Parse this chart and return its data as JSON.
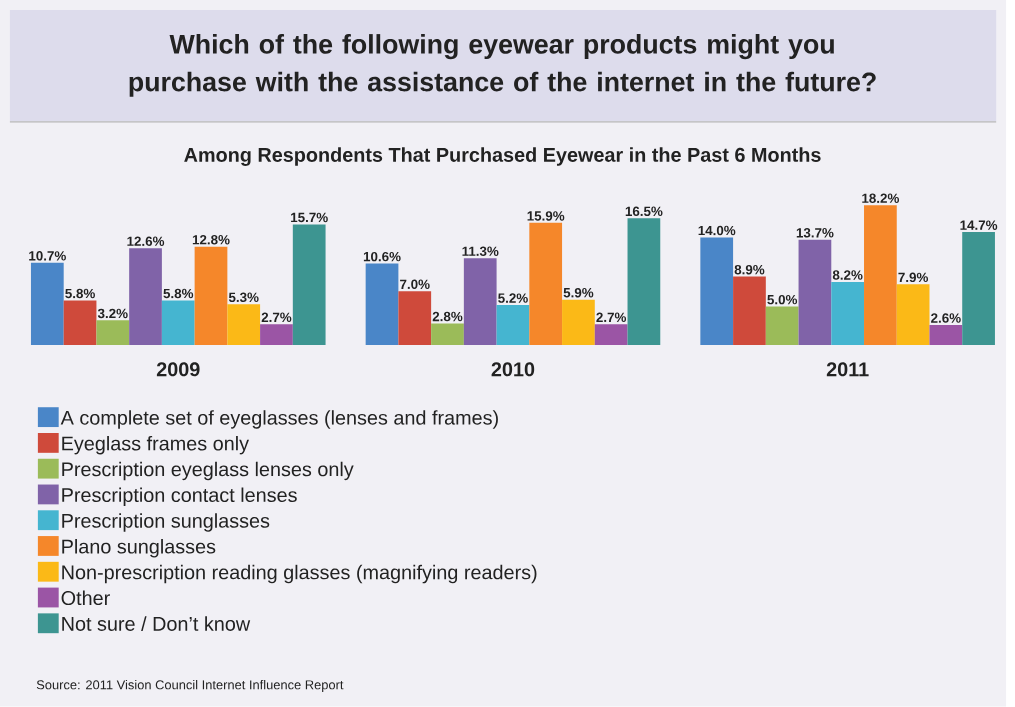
{
  "chart_data": {
    "type": "bar",
    "title": "Which of the following eyewear products might you purchase with the assistance of the internet in the future?",
    "subtitle": "Among Respondents That Purchased Eyewear in the Past 6 Months",
    "categories": [
      "2009",
      "2010",
      "2011"
    ],
    "series": [
      {
        "name": "A complete set of eyeglasses (lenses and frames)",
        "color": "#4a86c8",
        "values": [
          10.7,
          10.6,
          14.0
        ],
        "value_labels": [
          "10.7%",
          "10.6%",
          "14.0%"
        ]
      },
      {
        "name": "Eyeglass frames only",
        "color": "#cf4a3b",
        "values": [
          5.8,
          7.0,
          8.9
        ],
        "value_labels": [
          "5.8%",
          "7.0%",
          "8.9%"
        ]
      },
      {
        "name": "Prescription eyeglass lenses only",
        "color": "#9bbb59",
        "values": [
          3.2,
          2.8,
          5.0
        ],
        "value_labels": [
          "3.2%",
          "2.8%",
          "5.0%"
        ]
      },
      {
        "name": "Prescription contact lenses",
        "color": "#8063a8",
        "values": [
          12.6,
          11.3,
          13.7
        ],
        "value_labels": [
          "12.6%",
          "11.3%",
          "13.7%"
        ]
      },
      {
        "name": "Prescription sunglasses",
        "color": "#45b5d0",
        "values": [
          5.8,
          5.2,
          8.2
        ],
        "value_labels": [
          "5.8%",
          "5.2%",
          "8.2%"
        ]
      },
      {
        "name": "Plano sunglasses",
        "color": "#f5872a",
        "values": [
          12.8,
          15.9,
          18.2
        ],
        "value_labels": [
          "12.8%",
          "15.9%",
          "18.2%"
        ]
      },
      {
        "name": "Non-prescription reading glasses (magnifying readers)",
        "color": "#fbb917",
        "values": [
          5.3,
          5.9,
          7.9
        ],
        "value_labels": [
          "5.3%",
          "5.9%",
          "7.9%"
        ]
      },
      {
        "name": "Other",
        "color": "#9b55a5",
        "values": [
          2.7,
          2.7,
          2.6
        ],
        "value_labels": [
          "2.7%",
          "2.7%",
          "2.6%"
        ]
      },
      {
        "name": "Not sure / Don’t know",
        "color": "#3d9591",
        "values": [
          15.7,
          16.5,
          14.7
        ],
        "value_labels": [
          "15.7%",
          "16.5%",
          "14.7%"
        ]
      }
    ],
    "legend": "bottom",
    "annotations": [
      "Source: 2011 Vision Council Internet Influence Report"
    ]
  }
}
